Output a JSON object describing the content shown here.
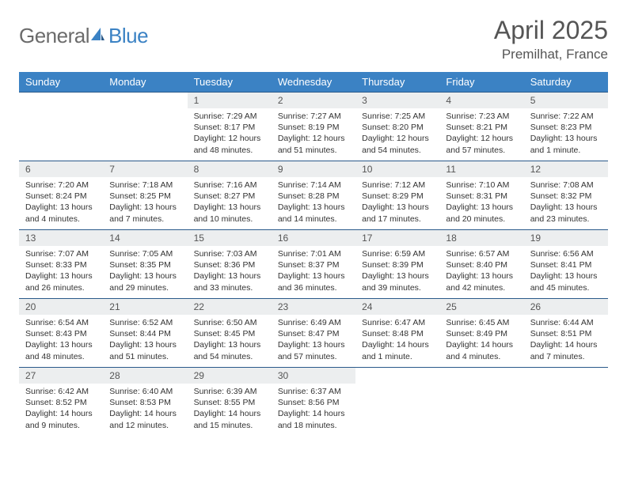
{
  "logo": {
    "general": "General",
    "blue": "Blue"
  },
  "title": "April 2025",
  "location": "Premilhat, France",
  "colors": {
    "header_bg": "#3b82c4",
    "header_text": "#ffffff",
    "daynum_bg": "#eceeef",
    "row_border": "#2a5a8a",
    "logo_gray": "#6b6b6b",
    "logo_blue": "#3b82c4"
  },
  "weekdays": [
    "Sunday",
    "Monday",
    "Tuesday",
    "Wednesday",
    "Thursday",
    "Friday",
    "Saturday"
  ],
  "weeks": [
    [
      null,
      null,
      {
        "n": "1",
        "sr": "Sunrise: 7:29 AM",
        "ss": "Sunset: 8:17 PM",
        "dl": "Daylight: 12 hours and 48 minutes."
      },
      {
        "n": "2",
        "sr": "Sunrise: 7:27 AM",
        "ss": "Sunset: 8:19 PM",
        "dl": "Daylight: 12 hours and 51 minutes."
      },
      {
        "n": "3",
        "sr": "Sunrise: 7:25 AM",
        "ss": "Sunset: 8:20 PM",
        "dl": "Daylight: 12 hours and 54 minutes."
      },
      {
        "n": "4",
        "sr": "Sunrise: 7:23 AM",
        "ss": "Sunset: 8:21 PM",
        "dl": "Daylight: 12 hours and 57 minutes."
      },
      {
        "n": "5",
        "sr": "Sunrise: 7:22 AM",
        "ss": "Sunset: 8:23 PM",
        "dl": "Daylight: 13 hours and 1 minute."
      }
    ],
    [
      {
        "n": "6",
        "sr": "Sunrise: 7:20 AM",
        "ss": "Sunset: 8:24 PM",
        "dl": "Daylight: 13 hours and 4 minutes."
      },
      {
        "n": "7",
        "sr": "Sunrise: 7:18 AM",
        "ss": "Sunset: 8:25 PM",
        "dl": "Daylight: 13 hours and 7 minutes."
      },
      {
        "n": "8",
        "sr": "Sunrise: 7:16 AM",
        "ss": "Sunset: 8:27 PM",
        "dl": "Daylight: 13 hours and 10 minutes."
      },
      {
        "n": "9",
        "sr": "Sunrise: 7:14 AM",
        "ss": "Sunset: 8:28 PM",
        "dl": "Daylight: 13 hours and 14 minutes."
      },
      {
        "n": "10",
        "sr": "Sunrise: 7:12 AM",
        "ss": "Sunset: 8:29 PM",
        "dl": "Daylight: 13 hours and 17 minutes."
      },
      {
        "n": "11",
        "sr": "Sunrise: 7:10 AM",
        "ss": "Sunset: 8:31 PM",
        "dl": "Daylight: 13 hours and 20 minutes."
      },
      {
        "n": "12",
        "sr": "Sunrise: 7:08 AM",
        "ss": "Sunset: 8:32 PM",
        "dl": "Daylight: 13 hours and 23 minutes."
      }
    ],
    [
      {
        "n": "13",
        "sr": "Sunrise: 7:07 AM",
        "ss": "Sunset: 8:33 PM",
        "dl": "Daylight: 13 hours and 26 minutes."
      },
      {
        "n": "14",
        "sr": "Sunrise: 7:05 AM",
        "ss": "Sunset: 8:35 PM",
        "dl": "Daylight: 13 hours and 29 minutes."
      },
      {
        "n": "15",
        "sr": "Sunrise: 7:03 AM",
        "ss": "Sunset: 8:36 PM",
        "dl": "Daylight: 13 hours and 33 minutes."
      },
      {
        "n": "16",
        "sr": "Sunrise: 7:01 AM",
        "ss": "Sunset: 8:37 PM",
        "dl": "Daylight: 13 hours and 36 minutes."
      },
      {
        "n": "17",
        "sr": "Sunrise: 6:59 AM",
        "ss": "Sunset: 8:39 PM",
        "dl": "Daylight: 13 hours and 39 minutes."
      },
      {
        "n": "18",
        "sr": "Sunrise: 6:57 AM",
        "ss": "Sunset: 8:40 PM",
        "dl": "Daylight: 13 hours and 42 minutes."
      },
      {
        "n": "19",
        "sr": "Sunrise: 6:56 AM",
        "ss": "Sunset: 8:41 PM",
        "dl": "Daylight: 13 hours and 45 minutes."
      }
    ],
    [
      {
        "n": "20",
        "sr": "Sunrise: 6:54 AM",
        "ss": "Sunset: 8:43 PM",
        "dl": "Daylight: 13 hours and 48 minutes."
      },
      {
        "n": "21",
        "sr": "Sunrise: 6:52 AM",
        "ss": "Sunset: 8:44 PM",
        "dl": "Daylight: 13 hours and 51 minutes."
      },
      {
        "n": "22",
        "sr": "Sunrise: 6:50 AM",
        "ss": "Sunset: 8:45 PM",
        "dl": "Daylight: 13 hours and 54 minutes."
      },
      {
        "n": "23",
        "sr": "Sunrise: 6:49 AM",
        "ss": "Sunset: 8:47 PM",
        "dl": "Daylight: 13 hours and 57 minutes."
      },
      {
        "n": "24",
        "sr": "Sunrise: 6:47 AM",
        "ss": "Sunset: 8:48 PM",
        "dl": "Daylight: 14 hours and 1 minute."
      },
      {
        "n": "25",
        "sr": "Sunrise: 6:45 AM",
        "ss": "Sunset: 8:49 PM",
        "dl": "Daylight: 14 hours and 4 minutes."
      },
      {
        "n": "26",
        "sr": "Sunrise: 6:44 AM",
        "ss": "Sunset: 8:51 PM",
        "dl": "Daylight: 14 hours and 7 minutes."
      }
    ],
    [
      {
        "n": "27",
        "sr": "Sunrise: 6:42 AM",
        "ss": "Sunset: 8:52 PM",
        "dl": "Daylight: 14 hours and 9 minutes."
      },
      {
        "n": "28",
        "sr": "Sunrise: 6:40 AM",
        "ss": "Sunset: 8:53 PM",
        "dl": "Daylight: 14 hours and 12 minutes."
      },
      {
        "n": "29",
        "sr": "Sunrise: 6:39 AM",
        "ss": "Sunset: 8:55 PM",
        "dl": "Daylight: 14 hours and 15 minutes."
      },
      {
        "n": "30",
        "sr": "Sunrise: 6:37 AM",
        "ss": "Sunset: 8:56 PM",
        "dl": "Daylight: 14 hours and 18 minutes."
      },
      null,
      null,
      null
    ]
  ]
}
